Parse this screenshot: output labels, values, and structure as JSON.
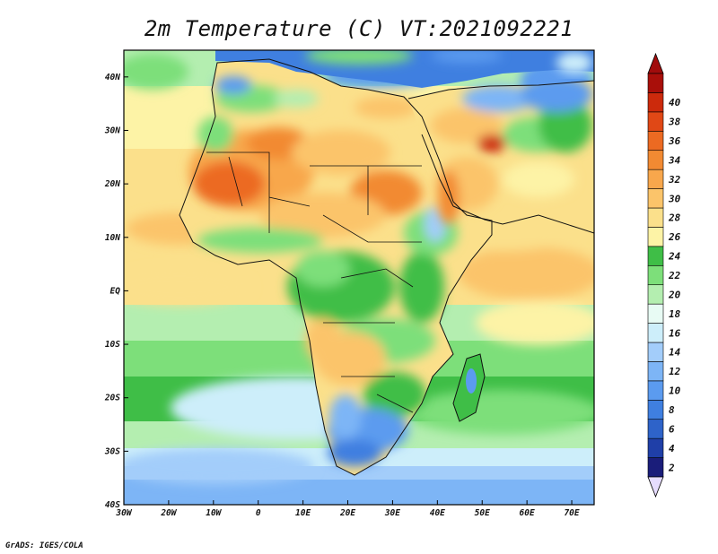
{
  "title": "2m Temperature (C) VT:2021092221",
  "credit": "GrADS: IGES/COLA",
  "chart_data": {
    "type": "heatmap",
    "title": "2m Temperature (C) VT:2021092221",
    "lon_range": [
      -30,
      75
    ],
    "lat_range": [
      -40,
      45
    ],
    "x_ticks": [
      "30W",
      "20W",
      "10W",
      "0",
      "10E",
      "20E",
      "30E",
      "40E",
      "50E",
      "60E",
      "70E"
    ],
    "x_tick_values": [
      -30,
      -20,
      -10,
      0,
      10,
      20,
      30,
      40,
      50,
      60,
      70
    ],
    "y_ticks": [
      "40S",
      "30S",
      "20S",
      "10S",
      "EQ",
      "10N",
      "20N",
      "30N",
      "40N"
    ],
    "y_tick_values": [
      -40,
      -30,
      -20,
      -10,
      0,
      10,
      20,
      30,
      40
    ],
    "colorbar": {
      "levels": [
        "2",
        "4",
        "6",
        "8",
        "10",
        "12",
        "14",
        "16",
        "18",
        "20",
        "22",
        "24",
        "26",
        "28",
        "30",
        "32",
        "34",
        "36",
        "38",
        "40"
      ],
      "colors": [
        "#1a1d7a",
        "#1f3fa8",
        "#2e63c9",
        "#3f7fe0",
        "#5b9bef",
        "#7db5f6",
        "#a3cdfa",
        "#cdeefa",
        "#e8fbf4",
        "#b4eeb0",
        "#7ddf7a",
        "#3fbe47",
        "#fdf3a6",
        "#fbe08b",
        "#fbc46a",
        "#f8a74c",
        "#f28a32",
        "#ec6a22",
        "#e04816",
        "#cc2a0c",
        "#a90f0a"
      ],
      "below_color": "#e6dcff",
      "above_color": "#a10c0c"
    }
  },
  "colors": {
    "land_outline": "#111111",
    "frame": "#000000"
  }
}
